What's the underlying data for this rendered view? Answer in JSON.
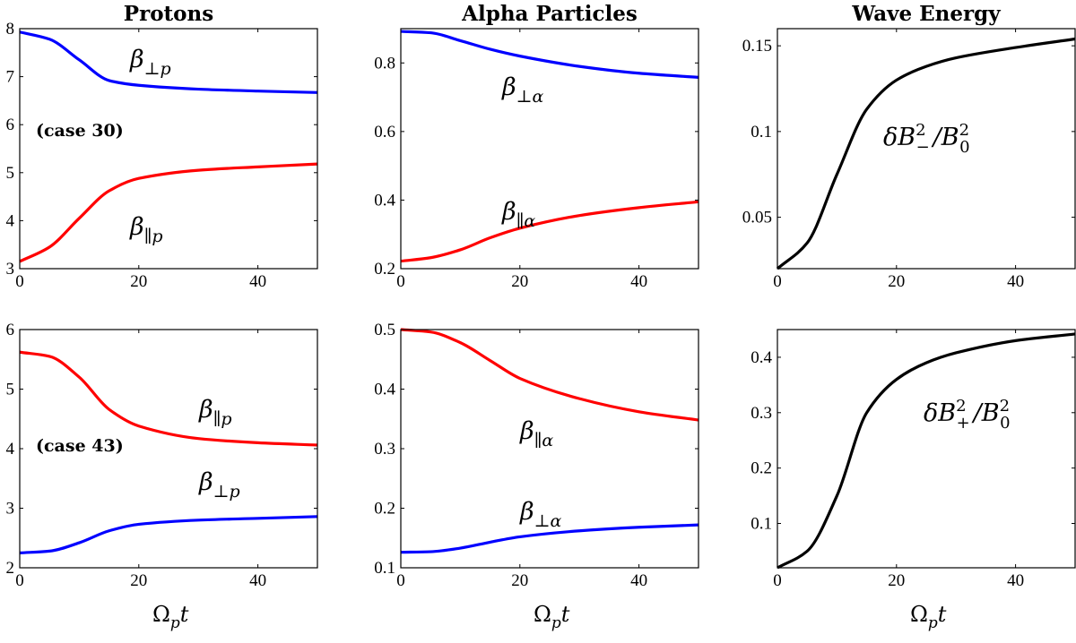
{
  "chart_data": [
    {
      "type": "line",
      "title": "Protons",
      "xlabel": "",
      "ylabel": "",
      "xlim": [
        0,
        50
      ],
      "ylim": [
        3,
        8
      ],
      "xticks": [
        "0",
        "20",
        "40"
      ],
      "yticks": [
        "3",
        "4",
        "5",
        "6",
        "7",
        "8"
      ],
      "annotation": "(case 30)",
      "series": [
        {
          "name": "β⊥p",
          "sym": "β",
          "sub": "⊥p",
          "color": "#0000ff",
          "x": [
            0,
            5,
            10,
            15,
            20,
            30,
            40,
            50
          ],
          "y": [
            7.93,
            7.78,
            7.35,
            6.92,
            6.82,
            6.74,
            6.7,
            6.67
          ]
        },
        {
          "name": "β∥p",
          "sym": "β",
          "sub": "∥p",
          "color": "#ff0000",
          "x": [
            0,
            5,
            10,
            15,
            20,
            30,
            40,
            50
          ],
          "y": [
            3.15,
            3.45,
            4.05,
            4.62,
            4.88,
            5.05,
            5.12,
            5.18
          ]
        }
      ]
    },
    {
      "type": "line",
      "title": "Alpha Particles",
      "xlabel": "",
      "ylabel": "",
      "xlim": [
        0,
        50
      ],
      "ylim": [
        0.2,
        0.9
      ],
      "xticks": [
        "0",
        "20",
        "40"
      ],
      "yticks": [
        "0.2",
        "0.4",
        "0.6",
        "0.8"
      ],
      "series": [
        {
          "name": "β⊥α",
          "sym": "β",
          "sub": "⊥α",
          "color": "#0000ff",
          "x": [
            0,
            5,
            10,
            15,
            20,
            30,
            40,
            50
          ],
          "y": [
            0.892,
            0.888,
            0.865,
            0.84,
            0.82,
            0.79,
            0.77,
            0.758
          ]
        },
        {
          "name": "β∥α",
          "sym": "β",
          "sub": "∥α",
          "color": "#ff0000",
          "x": [
            0,
            5,
            10,
            15,
            20,
            30,
            40,
            50
          ],
          "y": [
            0.222,
            0.232,
            0.255,
            0.29,
            0.318,
            0.355,
            0.378,
            0.395
          ]
        }
      ]
    },
    {
      "type": "line",
      "title": "Wave Energy",
      "xlabel": "",
      "ylabel": "",
      "xlim": [
        0,
        50
      ],
      "ylim": [
        0.02,
        0.16
      ],
      "xticks": [
        "0",
        "20",
        "40"
      ],
      "yticks": [
        "0.05",
        "0.1",
        "0.15"
      ],
      "series": [
        {
          "name": "δB−²/B0²",
          "sym": "δB",
          "sub": "−",
          "sup": "2",
          "color": "#000000",
          "x": [
            0,
            5,
            10,
            15,
            20,
            25,
            30,
            40,
            50
          ],
          "y": [
            0.02,
            0.035,
            0.075,
            0.113,
            0.13,
            0.138,
            0.143,
            0.149,
            0.154
          ]
        }
      ]
    },
    {
      "type": "line",
      "title": "",
      "xlabel": "Ωpt",
      "ylabel": "",
      "xlim": [
        0,
        50
      ],
      "ylim": [
        2,
        6
      ],
      "xticks": [
        "0",
        "20",
        "40"
      ],
      "yticks": [
        "2",
        "3",
        "4",
        "5",
        "6"
      ],
      "annotation": "(case 43)",
      "series": [
        {
          "name": "β∥p",
          "sym": "β",
          "sub": "∥p",
          "color": "#ff0000",
          "x": [
            0,
            5,
            10,
            15,
            20,
            30,
            40,
            50
          ],
          "y": [
            5.62,
            5.55,
            5.2,
            4.66,
            4.38,
            4.17,
            4.1,
            4.06
          ]
        },
        {
          "name": "β⊥p",
          "sym": "β",
          "sub": "⊥p",
          "color": "#0000ff",
          "x": [
            0,
            5,
            10,
            15,
            20,
            30,
            40,
            50
          ],
          "y": [
            2.25,
            2.28,
            2.42,
            2.62,
            2.73,
            2.8,
            2.83,
            2.86
          ]
        }
      ]
    },
    {
      "type": "line",
      "title": "",
      "xlabel": "Ωpt",
      "ylabel": "",
      "xlim": [
        0,
        50
      ],
      "ylim": [
        0.1,
        0.5
      ],
      "xticks": [
        "0",
        "20",
        "40"
      ],
      "yticks": [
        "0.1",
        "0.2",
        "0.3",
        "0.4",
        "0.5"
      ],
      "series": [
        {
          "name": "β∥α",
          "sym": "β",
          "sub": "∥α",
          "color": "#ff0000",
          "x": [
            0,
            5,
            10,
            15,
            20,
            30,
            40,
            50
          ],
          "y": [
            0.5,
            0.496,
            0.478,
            0.448,
            0.418,
            0.384,
            0.362,
            0.348
          ]
        },
        {
          "name": "β⊥α",
          "sym": "β",
          "sub": "⊥α",
          "color": "#0000ff",
          "x": [
            0,
            5,
            10,
            15,
            20,
            30,
            40,
            50
          ],
          "y": [
            0.126,
            0.127,
            0.133,
            0.143,
            0.152,
            0.162,
            0.168,
            0.172
          ]
        }
      ]
    },
    {
      "type": "line",
      "title": "",
      "xlabel": "Ωpt",
      "ylabel": "",
      "xlim": [
        0,
        50
      ],
      "ylim": [
        0.02,
        0.45
      ],
      "xticks": [
        "0",
        "20",
        "40"
      ],
      "yticks": [
        "0.1",
        "0.2",
        "0.3",
        "0.4"
      ],
      "series": [
        {
          "name": "δB+²/B0²",
          "sym": "δB",
          "sub": "+",
          "sup": "2",
          "color": "#000000",
          "x": [
            0,
            5,
            10,
            15,
            20,
            25,
            30,
            40,
            50
          ],
          "y": [
            0.02,
            0.05,
            0.15,
            0.3,
            0.36,
            0.39,
            0.408,
            0.43,
            0.442
          ]
        }
      ]
    }
  ]
}
